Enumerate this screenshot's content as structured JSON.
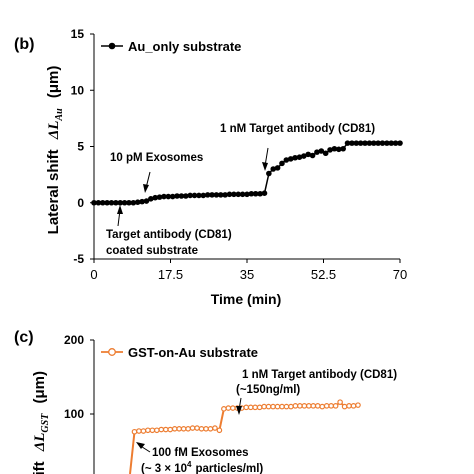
{
  "header_fragment": "(b)",
  "chart_data": [
    {
      "panel": "(b)",
      "type": "line",
      "xlabel": "Time (min)",
      "ylabel_prefix": "Lateral shift",
      "ylabel_symbol": "ΔL",
      "ylabel_subscript": "Au",
      "ylabel_unit": "(μm)",
      "xlim": [
        0,
        70
      ],
      "ylim": [
        -5,
        15
      ],
      "x_ticks": [
        "0",
        "17.5",
        "35",
        "52.5",
        "70"
      ],
      "y_ticks": [
        "15",
        "10",
        "5",
        "0",
        "-5"
      ],
      "legend": "top-left",
      "series": [
        {
          "name": "Au_only substrate",
          "color": "#000000",
          "marker": "circle",
          "x": [
            0,
            1,
            2,
            3,
            4,
            5,
            6,
            7,
            8,
            9,
            10,
            11,
            12,
            13,
            14,
            15,
            16,
            17,
            18,
            19,
            20,
            21,
            22,
            23,
            24,
            25,
            26,
            27,
            28,
            29,
            30,
            31,
            32,
            33,
            34,
            35,
            36,
            37,
            38,
            39,
            40,
            41,
            42,
            43,
            44,
            45,
            46,
            47,
            48,
            49,
            50,
            51,
            52,
            53,
            54,
            55,
            56,
            57,
            58,
            59,
            60,
            61,
            62,
            63,
            64,
            65,
            66,
            67,
            68,
            69,
            70
          ],
          "y": [
            0,
            0,
            0,
            0,
            0,
            0,
            0,
            0,
            0,
            0,
            0.05,
            0.1,
            0.15,
            0.35,
            0.45,
            0.5,
            0.55,
            0.55,
            0.55,
            0.6,
            0.6,
            0.6,
            0.65,
            0.65,
            0.65,
            0.65,
            0.7,
            0.7,
            0.7,
            0.7,
            0.7,
            0.75,
            0.75,
            0.75,
            0.75,
            0.75,
            0.8,
            0.8,
            0.8,
            0.85,
            2.6,
            3.0,
            3.1,
            3.5,
            3.8,
            3.9,
            4.0,
            4.05,
            4.15,
            4.3,
            4.2,
            4.5,
            4.6,
            4.4,
            4.7,
            4.8,
            4.75,
            4.8,
            5.3,
            5.3,
            5.3,
            5.3,
            5.3,
            5.3,
            5.3,
            5.3,
            5.3,
            5.3,
            5.3,
            5.3,
            5.3
          ]
        }
      ],
      "annotations": [
        {
          "text": "1 nM Target antibody (CD81)",
          "x": 40,
          "y": 2.6
        },
        {
          "text": "10 pM Exosomes",
          "x": 12.5,
          "y": 0.45
        },
        {
          "text": "Target antibody (CD81)",
          "x": 5,
          "y": 0
        },
        {
          "text": "coated substrate",
          "x": 5,
          "y": 0
        }
      ]
    },
    {
      "panel": "(c)",
      "type": "line",
      "ylabel_prefix": "shift",
      "ylabel_symbol": "ΔL",
      "ylabel_subscript": "GST",
      "ylabel_unit": "(μm)",
      "ylim": [
        -50,
        200
      ],
      "y_ticks": [
        "200",
        "100"
      ],
      "legend": "top-left",
      "series": [
        {
          "name": "GST-on-Au substrate",
          "color": "#ed7d31",
          "marker": "circle-open",
          "x": [
            0,
            1,
            2,
            3,
            4,
            5,
            6,
            7,
            8,
            9,
            10,
            11,
            12,
            13,
            14,
            15,
            16,
            17,
            18,
            19,
            20,
            21,
            22,
            23,
            24,
            25,
            26,
            27,
            28,
            29,
            30,
            31,
            32,
            33,
            34,
            35,
            36,
            37,
            38,
            39,
            40,
            41,
            42,
            43,
            44,
            45,
            46,
            47,
            48,
            49,
            50,
            51
          ],
          "y": [
            0,
            76,
            77,
            77,
            78,
            78,
            78,
            79,
            79,
            79,
            80,
            80,
            80,
            80,
            81,
            81,
            80,
            80,
            80,
            81,
            78,
            107,
            108,
            108,
            108,
            108,
            109,
            109,
            109,
            109,
            110,
            110,
            110,
            110,
            110,
            110,
            110,
            111,
            111,
            111,
            111,
            111,
            111,
            110,
            111,
            111,
            111,
            116,
            110,
            111,
            111,
            112
          ]
        }
      ],
      "annotations": [
        {
          "text": "1 nM Target antibody (CD81)",
          "x": 20,
          "y": 107
        },
        {
          "text": "(~150ng/ml)",
          "x": 20,
          "y": 107
        },
        {
          "text": "100 fM Exosomes",
          "x": 1,
          "y": 76
        },
        {
          "text": "particles/ml)",
          "x": 1,
          "y": 76
        }
      ]
    }
  ],
  "bottom_prefix": "(~ 3 × 10",
  "bottom_sup": "4"
}
